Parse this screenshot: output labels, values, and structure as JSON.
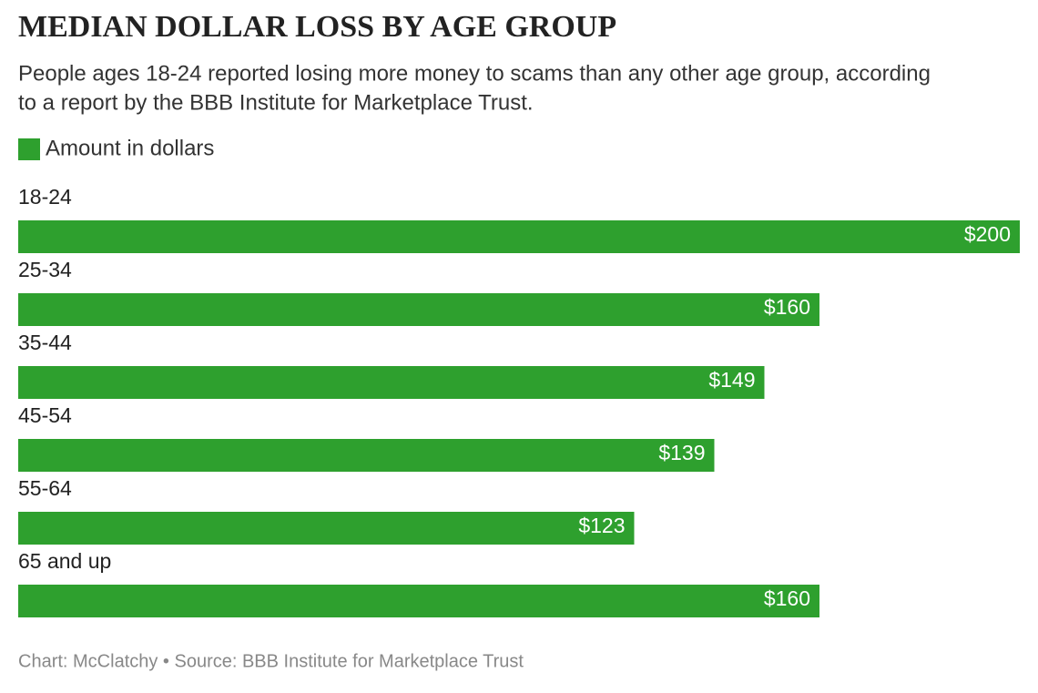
{
  "chart_data": {
    "type": "bar",
    "orientation": "horizontal",
    "title": "MEDIAN DOLLAR LOSS BY AGE GROUP",
    "subtitle": [
      "People ages 18-24 reported losing more money to scams than any other age group, according",
      "to a report by the BBB Institute for Marketplace Trust."
    ],
    "categories": [
      "18-24",
      "25-34",
      "35-44",
      "45-54",
      "55-64",
      "65 and up"
    ],
    "series": [
      {
        "name": "Amount in dollars",
        "color": "#2ea02e",
        "values": [
          200,
          160,
          149,
          139,
          123,
          160
        ],
        "value_labels": [
          "$200",
          "$160",
          "$149",
          "$139",
          "$123",
          "$160"
        ]
      }
    ],
    "footer": "Chart: McClatchy • Source: BBB Institute for Marketplace Trust"
  }
}
